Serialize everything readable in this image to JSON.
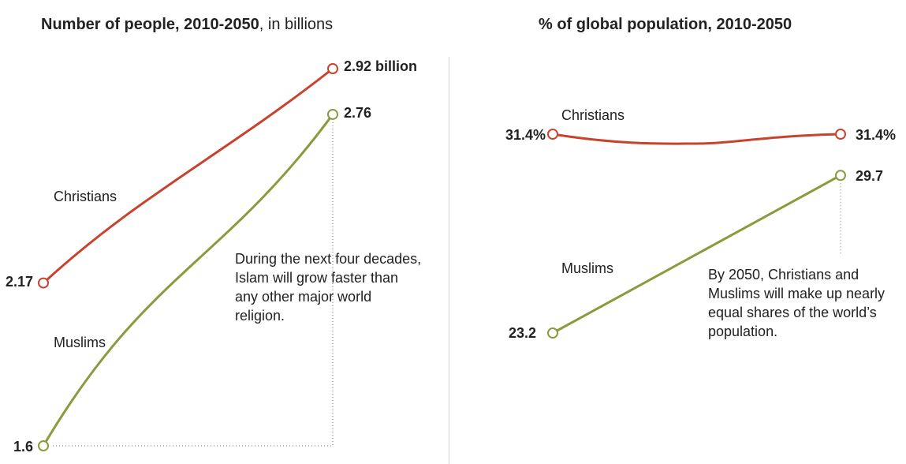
{
  "chart_data": [
    {
      "type": "line",
      "title": "Number of people, 2010-2050",
      "title_suffix": ", in billions",
      "x": [
        2010,
        2050
      ],
      "ylim": [
        1.6,
        2.92
      ],
      "series": [
        {
          "name": "Christians",
          "values": [
            2.17,
            2.92
          ],
          "color": "#c8432e",
          "start_label": "2.17",
          "end_label": "2.92 billion"
        },
        {
          "name": "Muslims",
          "values": [
            1.6,
            2.76
          ],
          "color": "#8a9a3c",
          "start_label": "1.6",
          "end_label": "2.76"
        }
      ],
      "annotation": "During the next four decades, Islam will grow faster than any other major world religion."
    },
    {
      "type": "line",
      "title": "% of global population, 2010-2050",
      "x": [
        2010,
        2050
      ],
      "ylim": [
        23.2,
        31.4
      ],
      "series": [
        {
          "name": "Christians",
          "values": [
            31.4,
            31.4
          ],
          "color": "#c8432e",
          "start_label": "31.4%",
          "end_label": "31.4%"
        },
        {
          "name": "Muslims",
          "values": [
            23.2,
            29.7
          ],
          "color": "#8a9a3c",
          "start_label": "23.2",
          "end_label": "29.7"
        }
      ],
      "annotation": "By 2050, Christians and Muslims will make up nearly equal shares of the world’s population."
    }
  ]
}
